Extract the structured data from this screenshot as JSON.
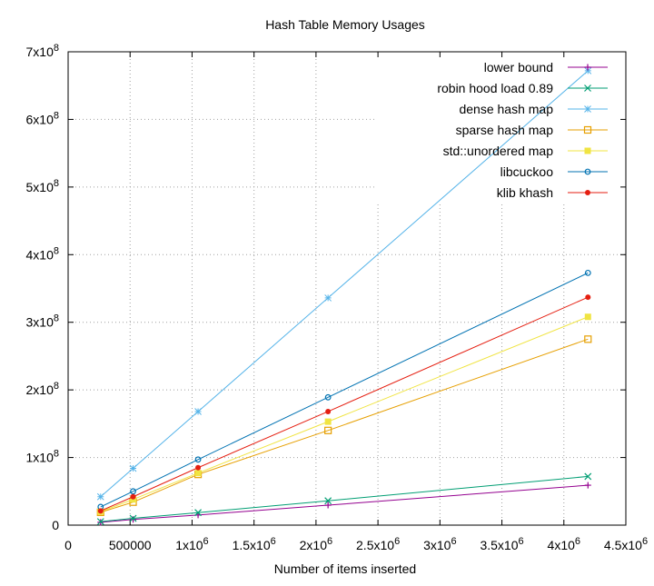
{
  "chart_data": {
    "type": "line",
    "title": "Hash Table Memory Usages",
    "xlabel": "Number of items inserted",
    "ylabel": "",
    "xlim": [
      0,
      4500000
    ],
    "ylim": [
      0,
      700000000
    ],
    "grid": true,
    "legend_position": "top-right",
    "x_ticks": [
      {
        "value": 0,
        "label": "0",
        "exp": ""
      },
      {
        "value": 500000,
        "label": "500000",
        "exp": ""
      },
      {
        "value": 1000000,
        "label": "1x10",
        "exp": "6"
      },
      {
        "value": 1500000,
        "label": "1.5x10",
        "exp": "6"
      },
      {
        "value": 2000000,
        "label": "2x10",
        "exp": "6"
      },
      {
        "value": 2500000,
        "label": "2.5x10",
        "exp": "6"
      },
      {
        "value": 3000000,
        "label": "3x10",
        "exp": "6"
      },
      {
        "value": 3500000,
        "label": "3.5x10",
        "exp": "6"
      },
      {
        "value": 4000000,
        "label": "4x10",
        "exp": "6"
      },
      {
        "value": 4500000,
        "label": "4.5x10",
        "exp": "6"
      }
    ],
    "y_ticks": [
      {
        "value": 0,
        "label": "0",
        "exp": ""
      },
      {
        "value": 100000000,
        "label": "1x10",
        "exp": "8"
      },
      {
        "value": 200000000,
        "label": "2x10",
        "exp": "8"
      },
      {
        "value": 300000000,
        "label": "3x10",
        "exp": "8"
      },
      {
        "value": 400000000,
        "label": "4x10",
        "exp": "8"
      },
      {
        "value": 500000000,
        "label": "5x10",
        "exp": "8"
      },
      {
        "value": 600000000,
        "label": "6x10",
        "exp": "8"
      },
      {
        "value": 700000000,
        "label": "7x10",
        "exp": "8"
      }
    ],
    "x": [
      262144,
      524288,
      1048576,
      2097152,
      4194304
    ],
    "series": [
      {
        "name": "lower bound",
        "color": "#94008f",
        "marker": "plus",
        "values": [
          4200000,
          8400000,
          15000000,
          29500000,
          59000000
        ]
      },
      {
        "name": "robin hood load 0.89",
        "color": "#009e73",
        "marker": "cross",
        "values": [
          5200000,
          10000000,
          18500000,
          36000000,
          72000000
        ]
      },
      {
        "name": "dense hash map",
        "color": "#56b4e9",
        "marker": "star",
        "values": [
          42000000,
          84000000,
          168000000,
          336000000,
          672000000
        ]
      },
      {
        "name": "sparse hash map",
        "color": "#e69f00",
        "marker": "open-square",
        "values": [
          19000000,
          34000000,
          75000000,
          140000000,
          275000000
        ]
      },
      {
        "name": "std::unordered map",
        "color": "#f0e442",
        "marker": "filled-square",
        "values": [
          20000000,
          38000000,
          77000000,
          153000000,
          308000000
        ]
      },
      {
        "name": "libcuckoo",
        "color": "#0072b2",
        "marker": "open-circle",
        "values": [
          27000000,
          50000000,
          97000000,
          189000000,
          373000000
        ]
      },
      {
        "name": "klib khash",
        "color": "#e51e10",
        "marker": "filled-circle",
        "values": [
          21000000,
          42000000,
          85000000,
          168000000,
          337000000
        ]
      }
    ]
  }
}
